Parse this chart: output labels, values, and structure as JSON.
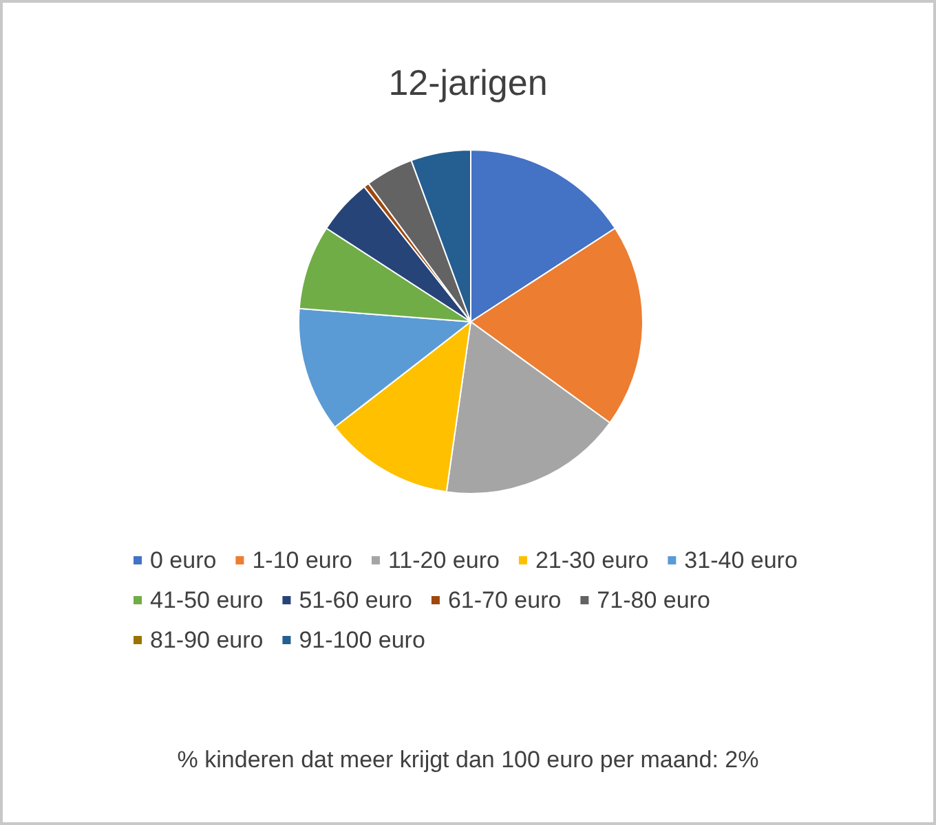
{
  "chart_data": {
    "type": "pie",
    "title": "12-jarigen",
    "categories": [
      "0 euro",
      "1-10 euro",
      "11-20 euro",
      "21-30 euro",
      "31-40 euro",
      "41-50 euro",
      "51-60 euro",
      "61-70 euro",
      "71-80 euro",
      "81-90 euro",
      "91-100 euro"
    ],
    "values": [
      15.8,
      19.1,
      17.2,
      12.2,
      11.7,
      7.9,
      5.2,
      0.5,
      4.5,
      null,
      5.6
    ],
    "colors": [
      "#4472c4",
      "#ed7d31",
      "#a5a5a5",
      "#ffc000",
      "#5b9bd5",
      "#70ad47",
      "#264478",
      "#9e480e",
      "#636363",
      "#997300",
      "#255e91"
    ],
    "legend": "bottom",
    "annotations": [
      "% kinderen dat meer krijgt dan 100 euro per maand: 2%"
    ]
  }
}
